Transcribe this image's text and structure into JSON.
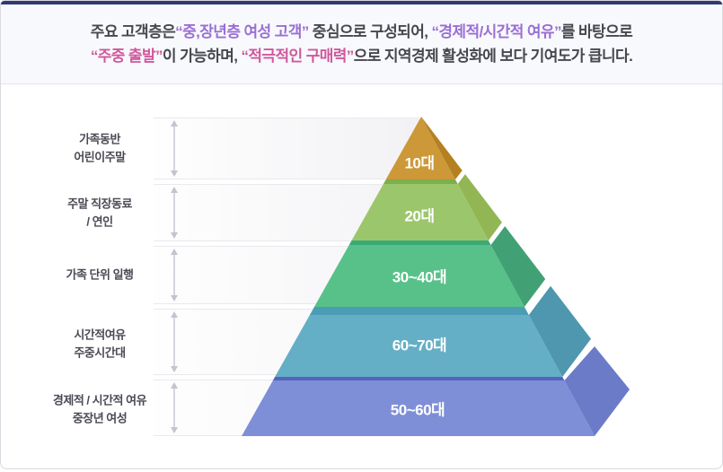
{
  "header": {
    "colors": {
      "dark": "#47474f",
      "purple": "#9a6fd4",
      "pink": "#d0589c"
    },
    "lines": [
      {
        "spans": [
          {
            "text": "주요 고객층은",
            "color": "dark"
          },
          {
            "text": "“중,장년층 여성 고객”",
            "color": "purple"
          },
          {
            "text": " 중심으로 구성되어, ",
            "color": "dark"
          },
          {
            "text": "“경제적/시간적 여유”",
            "color": "purple"
          },
          {
            "text": "를 바탕으로",
            "color": "dark"
          }
        ]
      },
      {
        "spans": [
          {
            "text": "“주중 출발”",
            "color": "pink"
          },
          {
            "text": "이 가능하며, ",
            "color": "dark"
          },
          {
            "text": "“적극적인 구매력”",
            "color": "pink"
          },
          {
            "text": "으로 지역경제 활성화에 보다 기여도가 큽니다.",
            "color": "dark"
          }
        ]
      }
    ]
  },
  "accent_colors": {
    "top_bar": "#2d3a74",
    "row_arrow": "#c2c4cf",
    "row_border": "#e9e9ee"
  },
  "pyramid": {
    "levels": [
      {
        "label": "10대",
        "row_label_lines": [
          "가족동반",
          "어린이주말"
        ],
        "front_color": "#cc9838",
        "side_color": "#b5801f",
        "strip_color": null
      },
      {
        "label": "20대",
        "row_label_lines": [
          "주말 직장동료",
          "/ 연인"
        ],
        "front_color": "#9cc66b",
        "side_color": "#93b654",
        "strip_color": "#7eaf4d"
      },
      {
        "label": "30~40대",
        "row_label_lines": [
          "가족 단위 일행"
        ],
        "front_color": "#57c189",
        "side_color": "#42a174",
        "strip_color": "#3baa77"
      },
      {
        "label": "60~70대",
        "row_label_lines": [
          "시간적여유",
          "주중시간대"
        ],
        "front_color": "#64afc5",
        "side_color": "#4e97ae",
        "strip_color": "#4a9db5"
      },
      {
        "label": "50~60대",
        "row_label_lines": [
          "경제적 / 시간적 여유",
          "중장년 여성"
        ],
        "front_color": "#7e8fd8",
        "side_color": "#6b7bc7",
        "strip_color": "#5564ba"
      }
    ]
  }
}
